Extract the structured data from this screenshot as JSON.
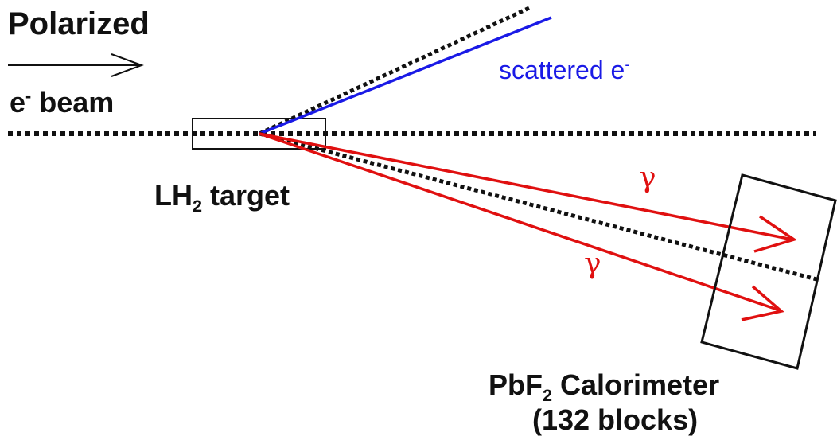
{
  "labels": {
    "polarized": "Polarized",
    "beam_prefix": "e",
    "beam_sup": "-",
    "beam_suffix": " beam",
    "scattered_prefix": "scattered e",
    "scattered_sup": "-",
    "target_prefix": "LH",
    "target_sub": "2",
    "target_suffix": " target",
    "gamma_upper": "γ",
    "gamma_lower": "γ",
    "calorimeter_prefix": "PbF",
    "calorimeter_sub": "2",
    "calorimeter_suffix": " Calorimeter",
    "calorimeter_blocks": "(132 blocks)"
  },
  "colors": {
    "scattered_electron": "#1a1ae6",
    "photon": "#e01010",
    "outline": "#111111"
  }
}
